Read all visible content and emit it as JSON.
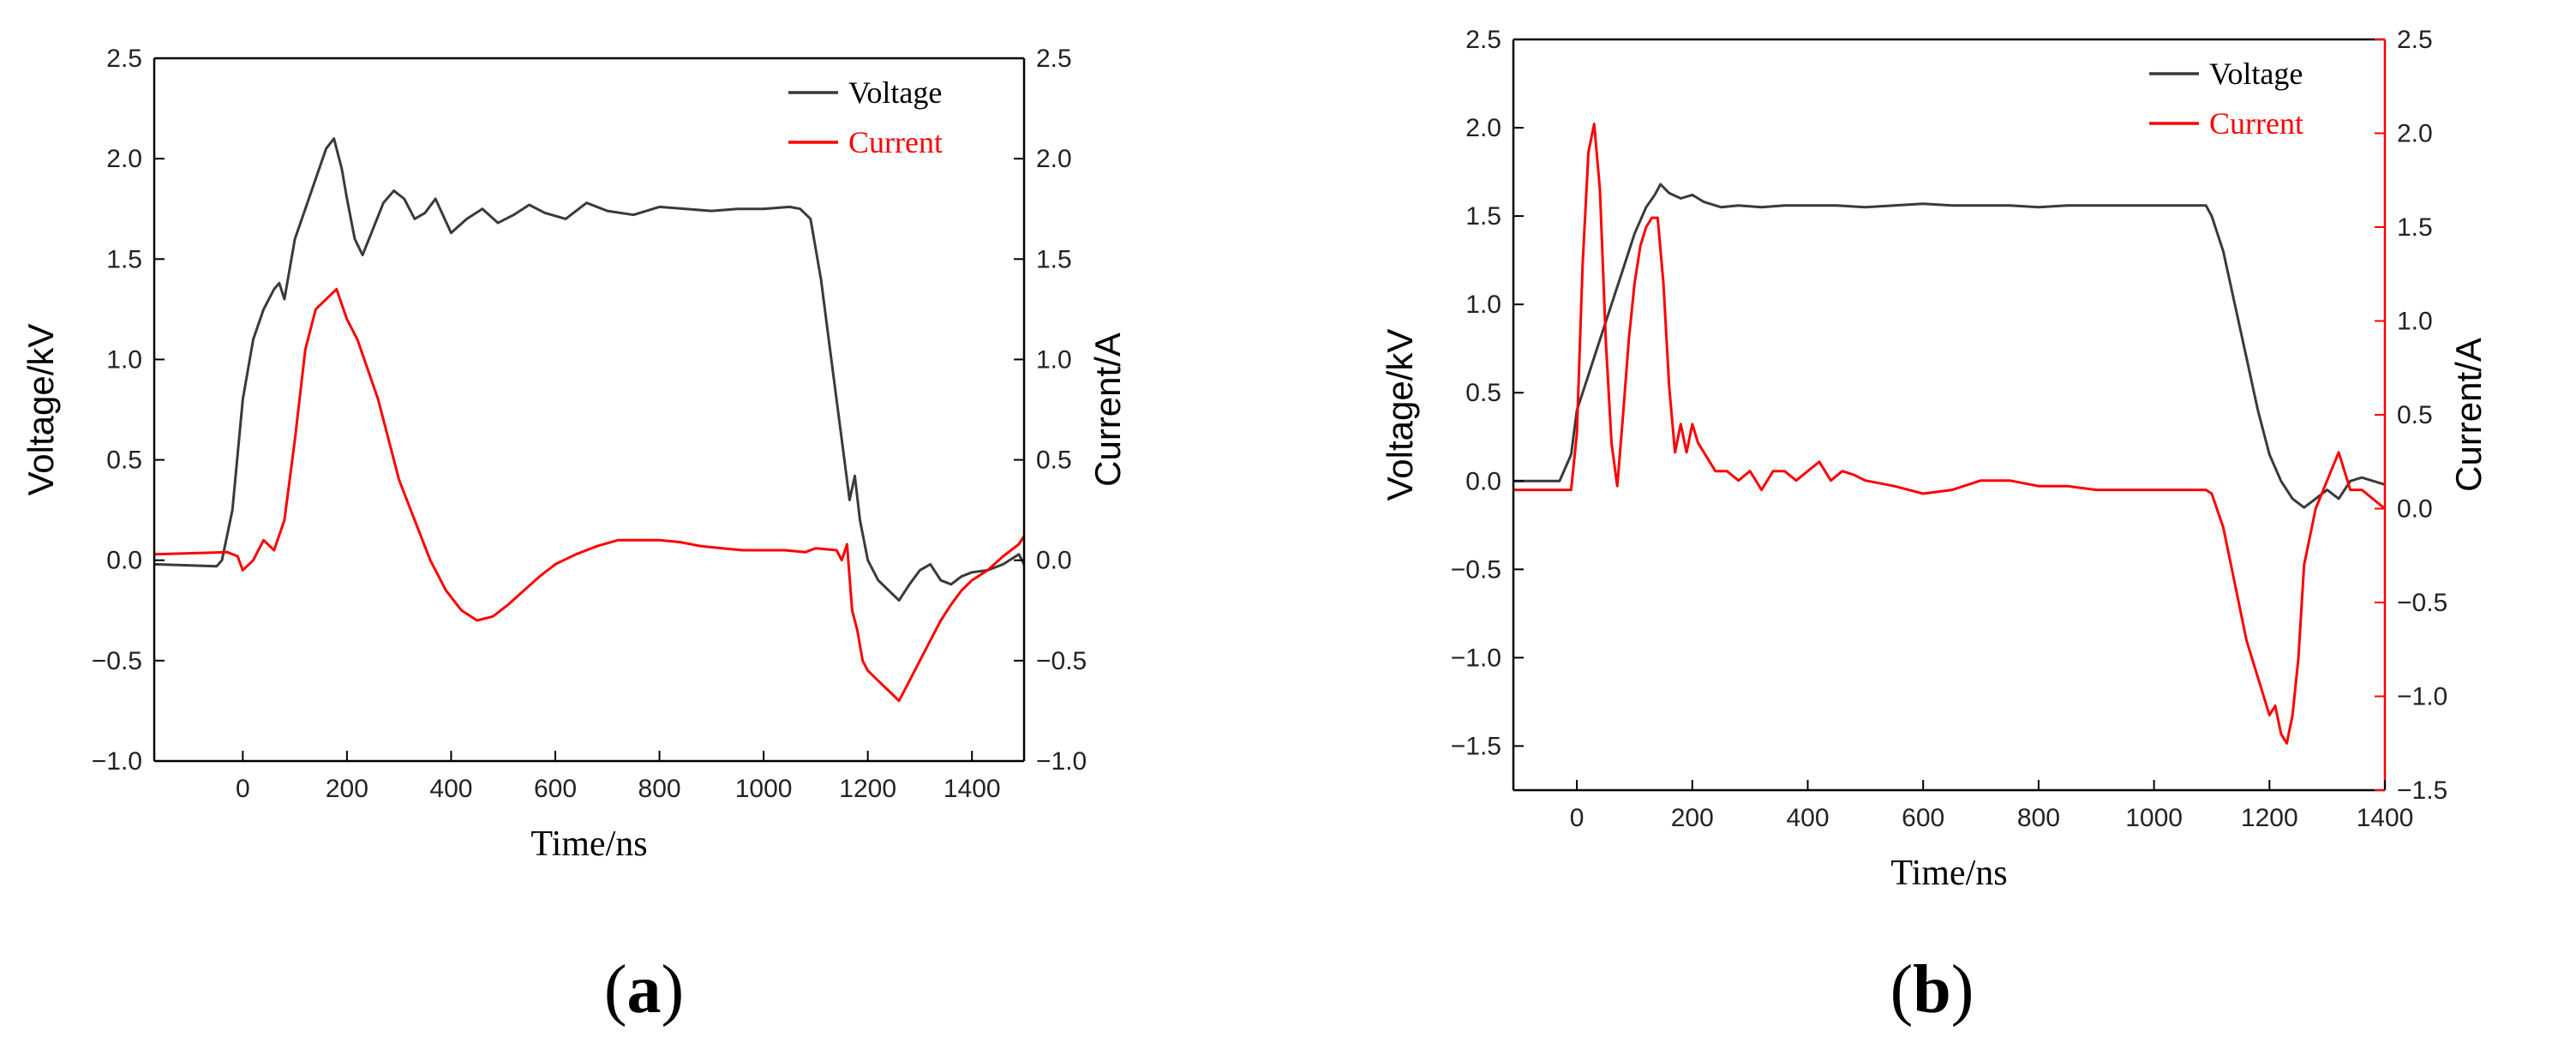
{
  "chart_data": [
    {
      "id": "a",
      "type": "line",
      "caption": "a",
      "xlabel": "Time/ns",
      "ylabel_left": "Voltage/kV",
      "ylabel_right": "Current/A",
      "xlim": [
        -170,
        1500
      ],
      "ylim_left": [
        -1.0,
        2.5
      ],
      "ylim_right": [
        -1.0,
        2.5
      ],
      "x_ticks": [
        "0",
        "200",
        "400",
        "600",
        "800",
        "1000",
        "1200",
        "1400"
      ],
      "y_ticks_left": [
        "−1.0",
        "−0.5",
        "0.0",
        "0.5",
        "1.0",
        "1.5",
        "2.0",
        "2.5"
      ],
      "y_ticks_right": [
        "−1.0",
        "−0.5",
        "0.0",
        "0.5",
        "1.0",
        "1.5",
        "2.0",
        "2.5"
      ],
      "legend": [
        "Voltage",
        "Current"
      ],
      "legend_position": "top-right",
      "series": [
        {
          "name": "Voltage",
          "axis": "left",
          "color": "#3a3a3a",
          "x": [
            -170,
            -50,
            -40,
            -20,
            0,
            20,
            40,
            60,
            70,
            80,
            90,
            100,
            120,
            140,
            160,
            175,
            190,
            200,
            215,
            230,
            250,
            270,
            290,
            310,
            330,
            350,
            370,
            400,
            430,
            460,
            490,
            520,
            550,
            580,
            620,
            660,
            700,
            750,
            800,
            850,
            900,
            950,
            1000,
            1050,
            1070,
            1090,
            1110,
            1130,
            1150,
            1165,
            1175,
            1185,
            1200,
            1220,
            1240,
            1260,
            1280,
            1300,
            1320,
            1340,
            1360,
            1380,
            1400,
            1430,
            1460,
            1490,
            1500
          ],
          "y": [
            -0.02,
            -0.03,
            0.0,
            0.25,
            0.8,
            1.1,
            1.25,
            1.35,
            1.38,
            1.3,
            1.45,
            1.6,
            1.75,
            1.9,
            2.05,
            2.1,
            1.95,
            1.8,
            1.6,
            1.52,
            1.65,
            1.78,
            1.84,
            1.8,
            1.7,
            1.73,
            1.8,
            1.63,
            1.7,
            1.75,
            1.68,
            1.72,
            1.77,
            1.73,
            1.7,
            1.78,
            1.74,
            1.72,
            1.76,
            1.75,
            1.74,
            1.75,
            1.75,
            1.76,
            1.75,
            1.7,
            1.4,
            1.0,
            0.6,
            0.3,
            0.42,
            0.2,
            0.0,
            -0.1,
            -0.15,
            -0.2,
            -0.12,
            -0.05,
            -0.02,
            -0.1,
            -0.12,
            -0.08,
            -0.06,
            -0.05,
            -0.02,
            0.03,
            -0.02
          ]
        },
        {
          "name": "Current",
          "axis": "right",
          "color": "#ff0000",
          "x": [
            -170,
            -30,
            -10,
            0,
            20,
            40,
            60,
            80,
            100,
            120,
            140,
            160,
            180,
            200,
            220,
            240,
            260,
            280,
            300,
            330,
            360,
            390,
            420,
            450,
            480,
            510,
            540,
            570,
            600,
            640,
            680,
            720,
            760,
            800,
            840,
            880,
            920,
            960,
            1000,
            1040,
            1080,
            1100,
            1140,
            1150,
            1160,
            1170,
            1180,
            1190,
            1200,
            1220,
            1240,
            1260,
            1280,
            1300,
            1320,
            1340,
            1360,
            1380,
            1400,
            1430,
            1460,
            1490,
            1500
          ],
          "y": [
            0.03,
            0.04,
            0.02,
            -0.05,
            0.0,
            0.1,
            0.05,
            0.2,
            0.6,
            1.05,
            1.25,
            1.3,
            1.35,
            1.2,
            1.1,
            0.95,
            0.8,
            0.6,
            0.4,
            0.2,
            0.0,
            -0.15,
            -0.25,
            -0.3,
            -0.28,
            -0.22,
            -0.15,
            -0.08,
            -0.02,
            0.03,
            0.07,
            0.1,
            0.1,
            0.1,
            0.09,
            0.07,
            0.06,
            0.05,
            0.05,
            0.05,
            0.04,
            0.06,
            0.05,
            0.0,
            0.08,
            -0.25,
            -0.35,
            -0.5,
            -0.55,
            -0.6,
            -0.65,
            -0.7,
            -0.6,
            -0.5,
            -0.4,
            -0.3,
            -0.22,
            -0.15,
            -0.1,
            -0.05,
            0.02,
            0.08,
            0.12
          ]
        }
      ]
    },
    {
      "id": "b",
      "type": "line",
      "caption": "b",
      "xlabel": "Time/ns",
      "ylabel_left": "Voltage/kV",
      "ylabel_right": "Current/A",
      "xlim": [
        -110,
        1400
      ],
      "ylim_left": [
        -1.75,
        2.5
      ],
      "ylim_right": [
        -1.5,
        2.5
      ],
      "x_ticks": [
        "0",
        "200",
        "400",
        "600",
        "800",
        "1000",
        "1200",
        "1400"
      ],
      "y_ticks_left": [
        "−1.5",
        "−1.0",
        "−0.5",
        "0.0",
        "0.5",
        "1.0",
        "1.5",
        "2.0",
        "2.5"
      ],
      "y_ticks_right": [
        "−1.5",
        "−1.0",
        "−0.5",
        "0.0",
        "0.5",
        "1.0",
        "1.5",
        "2.0",
        "2.5"
      ],
      "legend": [
        "Voltage",
        "Current"
      ],
      "legend_position": "top-right",
      "series": [
        {
          "name": "Voltage",
          "axis": "left",
          "color": "#3a3a3a",
          "x": [
            -110,
            -30,
            -10,
            0,
            20,
            40,
            60,
            80,
            100,
            120,
            135,
            145,
            160,
            180,
            200,
            220,
            250,
            280,
            320,
            360,
            400,
            450,
            500,
            550,
            600,
            650,
            700,
            750,
            800,
            850,
            900,
            950,
            1000,
            1050,
            1090,
            1100,
            1120,
            1140,
            1160,
            1180,
            1200,
            1220,
            1240,
            1260,
            1280,
            1300,
            1320,
            1340,
            1360,
            1380,
            1400
          ],
          "y": [
            0.0,
            0.0,
            0.15,
            0.4,
            0.6,
            0.8,
            1.0,
            1.2,
            1.4,
            1.55,
            1.62,
            1.68,
            1.63,
            1.6,
            1.62,
            1.58,
            1.55,
            1.56,
            1.55,
            1.56,
            1.56,
            1.56,
            1.55,
            1.56,
            1.57,
            1.56,
            1.56,
            1.56,
            1.55,
            1.56,
            1.56,
            1.56,
            1.56,
            1.56,
            1.56,
            1.5,
            1.3,
            1.0,
            0.7,
            0.4,
            0.15,
            0.0,
            -0.1,
            -0.15,
            -0.1,
            -0.05,
            -0.1,
            0.0,
            0.02,
            0.0,
            -0.02
          ]
        },
        {
          "name": "Current",
          "axis": "right",
          "color": "#ff0000",
          "x": [
            -110,
            -10,
            0,
            10,
            20,
            30,
            40,
            50,
            60,
            70,
            80,
            90,
            100,
            110,
            120,
            130,
            140,
            150,
            160,
            170,
            180,
            190,
            200,
            210,
            220,
            240,
            260,
            280,
            300,
            320,
            340,
            360,
            380,
            400,
            420,
            440,
            460,
            480,
            500,
            550,
            600,
            650,
            700,
            750,
            800,
            850,
            900,
            950,
            1000,
            1050,
            1090,
            1100,
            1120,
            1140,
            1160,
            1180,
            1200,
            1210,
            1220,
            1230,
            1240,
            1250,
            1260,
            1280,
            1300,
            1320,
            1340,
            1360,
            1380,
            1400
          ],
          "y": [
            0.1,
            0.1,
            0.4,
            1.3,
            1.9,
            2.05,
            1.7,
            0.9,
            0.35,
            0.12,
            0.5,
            0.9,
            1.2,
            1.4,
            1.5,
            1.55,
            1.55,
            1.2,
            0.65,
            0.3,
            0.45,
            0.3,
            0.45,
            0.35,
            0.3,
            0.2,
            0.2,
            0.15,
            0.2,
            0.1,
            0.2,
            0.2,
            0.15,
            0.2,
            0.25,
            0.15,
            0.2,
            0.18,
            0.15,
            0.12,
            0.08,
            0.1,
            0.15,
            0.15,
            0.12,
            0.12,
            0.1,
            0.1,
            0.1,
            0.1,
            0.1,
            0.08,
            -0.1,
            -0.4,
            -0.7,
            -0.9,
            -1.1,
            -1.05,
            -1.2,
            -1.25,
            -1.1,
            -0.8,
            -0.3,
            0.0,
            0.15,
            0.3,
            0.1,
            0.1,
            0.05,
            0.0
          ]
        }
      ]
    }
  ]
}
